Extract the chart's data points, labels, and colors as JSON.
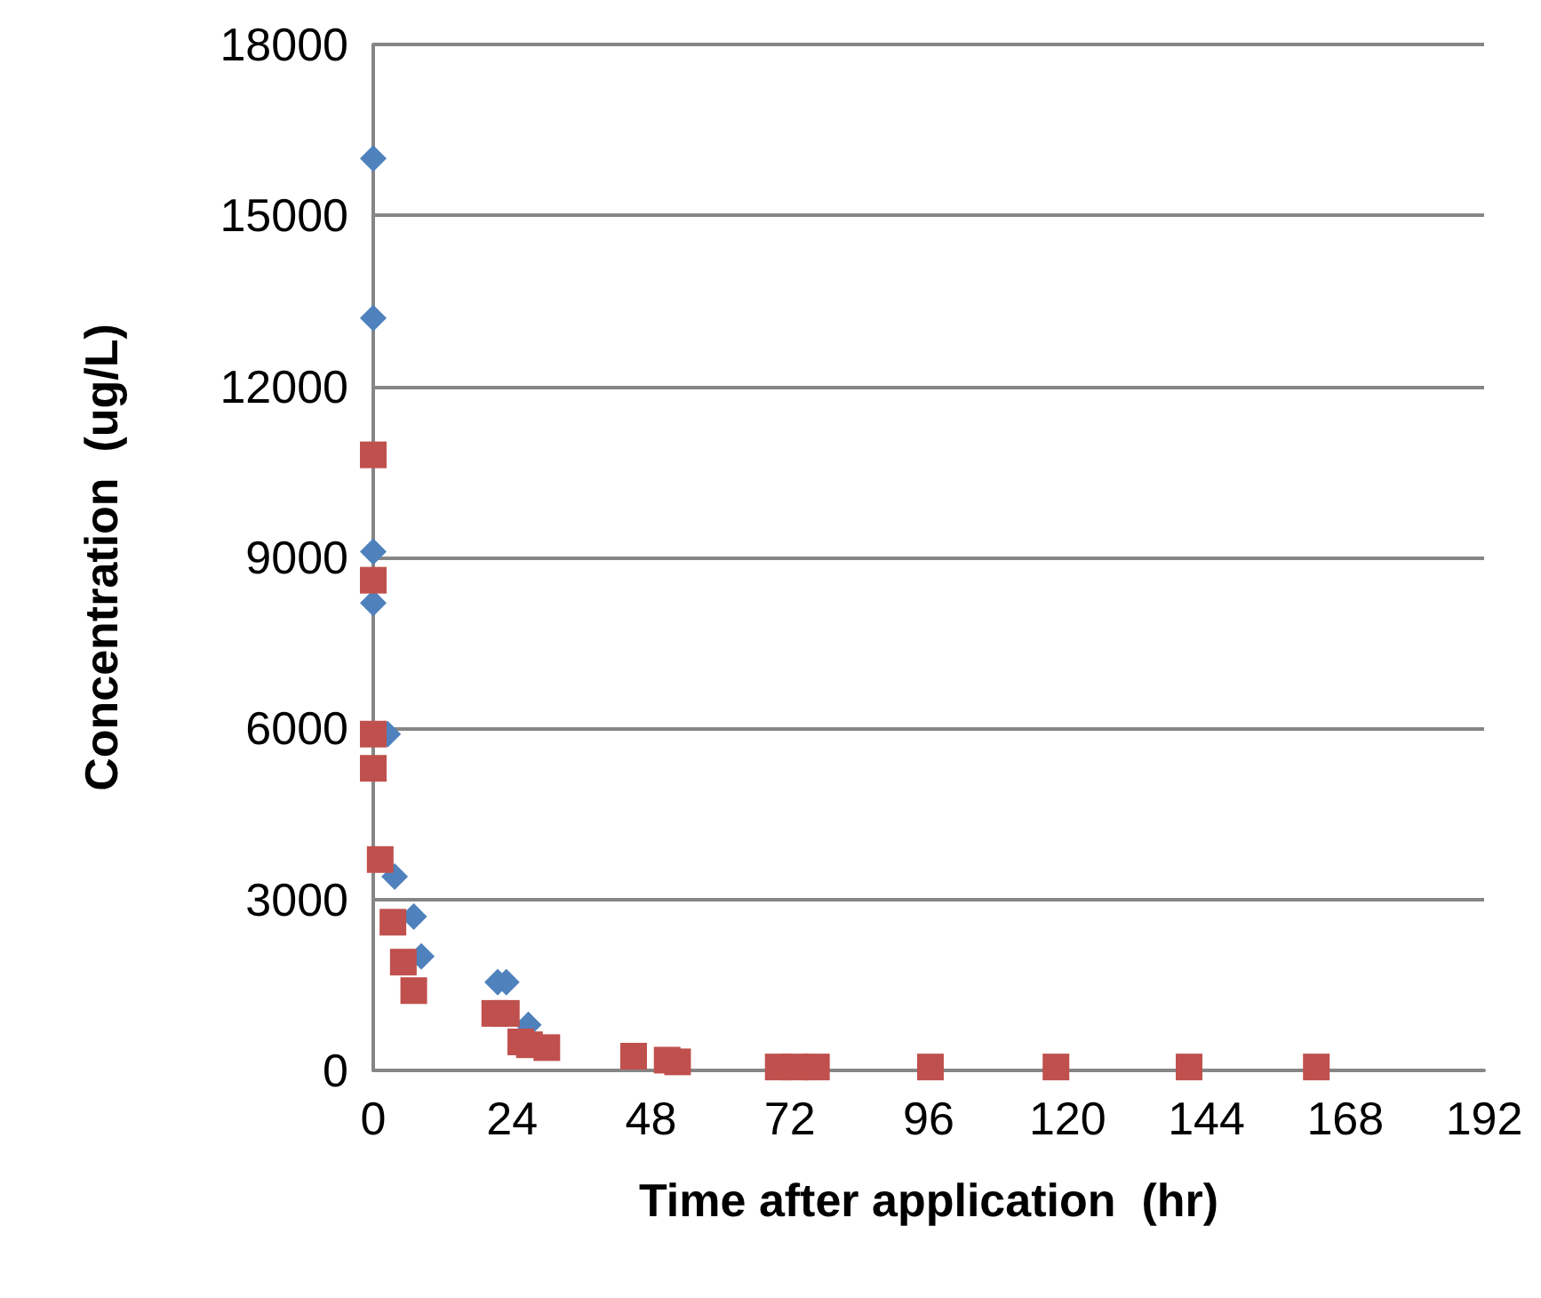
{
  "chart_data": {
    "type": "scatter",
    "xlabel": "Time after application  (hr)",
    "ylabel": "Concentration  (ug/L)",
    "xlim": [
      0,
      192
    ],
    "xticks": [
      0,
      24,
      48,
      72,
      96,
      120,
      144,
      168,
      192
    ],
    "ylim": [
      0,
      18000
    ],
    "yticks": [
      0,
      3000,
      6000,
      9000,
      12000,
      15000,
      18000
    ],
    "grid": "y",
    "series": [
      {
        "color": "#4f81bd",
        "marker": "diamond",
        "x": [
          0,
          0,
          0,
          0,
          2.5,
          3.7,
          7,
          8.3,
          21.5,
          23,
          26.8
        ],
        "values": [
          16000,
          13200,
          9100,
          8200,
          5900,
          3400,
          2700,
          2000,
          1550,
          1550,
          800
        ]
      },
      {
        "color": "#c0504d",
        "marker": "square",
        "x": [
          0,
          0,
          0,
          0,
          1.2,
          3.4,
          5.2,
          7,
          21,
          23,
          25.5,
          27,
          30,
          45,
          50.8,
          52.6,
          70,
          73,
          76.6,
          96.3,
          118,
          141,
          163
        ],
        "values": [
          10800,
          8600,
          5900,
          5300,
          3700,
          2600,
          1900,
          1400,
          1000,
          1000,
          500,
          450,
          400,
          250,
          180,
          150,
          60,
          60,
          60,
          60,
          60,
          60,
          60
        ]
      }
    ]
  }
}
